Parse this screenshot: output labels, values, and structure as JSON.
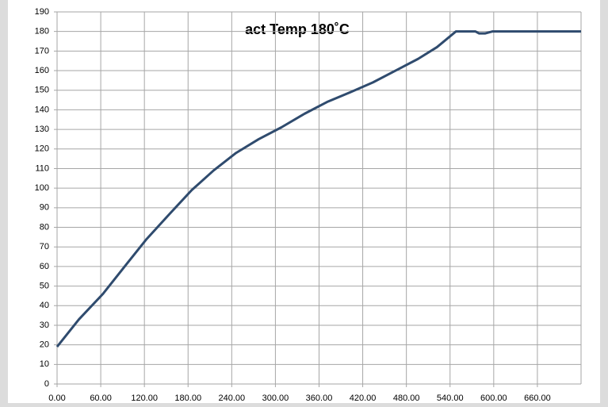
{
  "chart_data": {
    "type": "line",
    "title": "act Temp 180˚C",
    "x": [
      0,
      30,
      63,
      95,
      123,
      155,
      185,
      215,
      246,
      277,
      308,
      340,
      371,
      403,
      434,
      465,
      496,
      522,
      548,
      575,
      580,
      588,
      598,
      720
    ],
    "series": [
      {
        "name": "act Temp",
        "color": "#2f4b6e",
        "values": [
          19,
          33,
          46,
          61,
          74,
          87,
          99,
          109,
          118,
          125,
          131,
          138,
          144,
          149,
          154,
          160,
          166,
          172,
          180,
          180,
          179,
          179,
          180,
          180
        ]
      }
    ],
    "xlim": [
      0,
      720
    ],
    "xticks": [
      {
        "value": 0,
        "label": "0.00"
      },
      {
        "value": 60,
        "label": "60.00"
      },
      {
        "value": 120,
        "label": "120.00"
      },
      {
        "value": 180,
        "label": "180.00"
      },
      {
        "value": 240,
        "label": "240.00"
      },
      {
        "value": 300,
        "label": "300.00"
      },
      {
        "value": 360,
        "label": "360.00"
      },
      {
        "value": 420,
        "label": "420.00"
      },
      {
        "value": 480,
        "label": "480.00"
      },
      {
        "value": 540,
        "label": "540.00"
      },
      {
        "value": 600,
        "label": "600.00"
      },
      {
        "value": 660,
        "label": "660.00"
      }
    ],
    "ylim": [
      0,
      190
    ],
    "yticks": [
      0,
      10,
      20,
      30,
      40,
      50,
      60,
      70,
      80,
      90,
      100,
      110,
      120,
      130,
      140,
      150,
      160,
      170,
      180,
      190
    ],
    "grid": true
  }
}
